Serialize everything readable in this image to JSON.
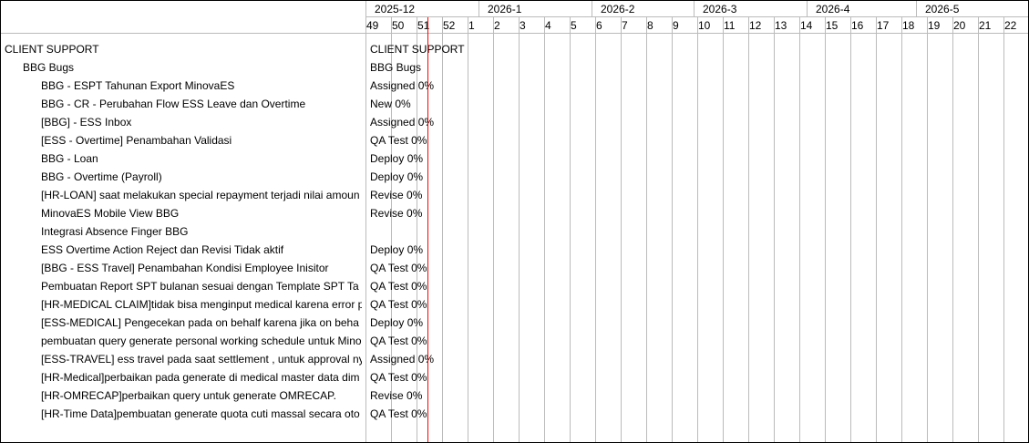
{
  "timeline": {
    "months": [
      {
        "label": "2025-12",
        "days": 31
      },
      {
        "label": "2026-1",
        "days": 31
      },
      {
        "label": "2026-2",
        "days": 28
      },
      {
        "label": "2026-3",
        "days": 31
      },
      {
        "label": "2026-4",
        "days": 30
      },
      {
        "label": "2026-5",
        "days": 31
      }
    ],
    "weeks": [
      "49",
      "50",
      "51",
      "52",
      "1",
      "2",
      "3",
      "4",
      "5",
      "6",
      "7",
      "8",
      "9",
      "10",
      "11",
      "12",
      "13",
      "14",
      "15",
      "16",
      "17",
      "18",
      "19",
      "20",
      "21",
      "22"
    ],
    "today_color": "#ff0000"
  },
  "tasks": [
    {
      "name": "CLIENT SUPPORT",
      "level": 0,
      "bar": "CLIENT SUPPORT"
    },
    {
      "name": "BBG Bugs",
      "level": 1,
      "bar": "BBG Bugs"
    },
    {
      "name": "BBG - ESPT Tahunan Export MinovaES",
      "level": 2,
      "bar": "Assigned 0%"
    },
    {
      "name": "BBG - CR - Perubahan Flow ESS Leave dan Overtime",
      "level": 2,
      "bar": "New 0%"
    },
    {
      "name": "[BBG] - ESS Inbox",
      "level": 2,
      "bar": "Assigned 0%"
    },
    {
      "name": "[ESS - Overtime]  Penambahan Validasi",
      "level": 2,
      "bar": "QA Test 0%"
    },
    {
      "name": "BBG - Loan",
      "level": 2,
      "bar": "Deploy 0%"
    },
    {
      "name": "BBG - Overtime (Payroll)",
      "level": 2,
      "bar": "Deploy 0%"
    },
    {
      "name": "[HR-LOAN] saat melakukan special repayment terjadi nilai amoun",
      "level": 2,
      "bar": "Revise 0%"
    },
    {
      "name": "MinovaES Mobile View BBG",
      "level": 2,
      "bar": "Revise 0%"
    },
    {
      "name": "Integrasi Absence Finger BBG",
      "level": 2,
      "bar": ""
    },
    {
      "name": "ESS Overtime Action Reject dan Revisi Tidak aktif",
      "level": 2,
      "bar": "Deploy 0%"
    },
    {
      "name": "[BBG - ESS Travel] Penambahan Kondisi Employee Inisitor",
      "level": 2,
      "bar": "QA Test 0%"
    },
    {
      "name": "Pembuatan Report SPT bulanan sesuai dengan Template SPT Ta",
      "level": 2,
      "bar": "QA Test 0%"
    },
    {
      "name": "[HR-MEDICAL CLAIM]tidak bisa menginput medical karena error p",
      "level": 2,
      "bar": "QA Test 0%"
    },
    {
      "name": "[ESS-MEDICAL] Pengecekan pada on behalf karena jika on beha",
      "level": 2,
      "bar": "Deploy 0%"
    },
    {
      "name": "pembuatan query generate personal working schedule untuk Mino",
      "level": 2,
      "bar": "QA Test 0%"
    },
    {
      "name": "[ESS-TRAVEL] ess travel pada saat settlement , untuk approval ny",
      "level": 2,
      "bar": "Assigned 0%"
    },
    {
      "name": "[HR-Medical]perbaikan pada generate di medical master data dim",
      "level": 2,
      "bar": "QA Test 0%"
    },
    {
      "name": "[HR-OMRECAP]perbaikan query untuk generate OMRECAP.",
      "level": 2,
      "bar": "Revise 0%"
    },
    {
      "name": "[HR-Time Data]pembuatan generate quota cuti massal secara oto",
      "level": 2,
      "bar": "QA Test 0%"
    }
  ]
}
